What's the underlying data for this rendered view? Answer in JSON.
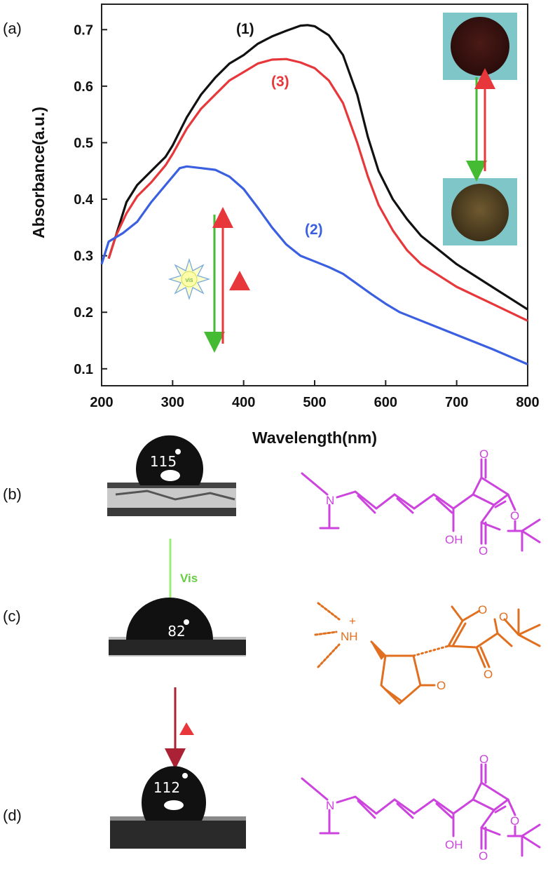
{
  "panels": {
    "a": "(a)",
    "b": "(b)",
    "c": "(c)",
    "d": "(d)"
  },
  "chart_data": {
    "type": "line",
    "xlabel": "Wavelength(nm)",
    "ylabel": "Absorbance(a.u.)",
    "xlim": [
      200,
      800
    ],
    "ylim": [
      0.07,
      0.745
    ],
    "xticks": [
      200,
      300,
      400,
      500,
      600,
      700,
      800
    ],
    "yticks": [
      0.1,
      0.2,
      0.3,
      0.4,
      0.5,
      0.6,
      0.7
    ],
    "grid": false,
    "series": [
      {
        "name": "(1)",
        "color": "#111111",
        "points": [
          [
            210,
            0.295
          ],
          [
            220,
            0.335
          ],
          [
            235,
            0.395
          ],
          [
            250,
            0.425
          ],
          [
            270,
            0.45
          ],
          [
            290,
            0.475
          ],
          [
            300,
            0.495
          ],
          [
            320,
            0.545
          ],
          [
            340,
            0.585
          ],
          [
            360,
            0.615
          ],
          [
            380,
            0.64
          ],
          [
            400,
            0.655
          ],
          [
            420,
            0.675
          ],
          [
            440,
            0.688
          ],
          [
            460,
            0.698
          ],
          [
            480,
            0.707
          ],
          [
            490,
            0.708
          ],
          [
            500,
            0.706
          ],
          [
            520,
            0.69
          ],
          [
            540,
            0.655
          ],
          [
            560,
            0.585
          ],
          [
            575,
            0.51
          ],
          [
            590,
            0.45
          ],
          [
            610,
            0.4
          ],
          [
            630,
            0.365
          ],
          [
            650,
            0.335
          ],
          [
            700,
            0.285
          ],
          [
            750,
            0.245
          ],
          [
            800,
            0.205
          ]
        ]
      },
      {
        "name": "(3)",
        "color": "#e8373a",
        "points": [
          [
            210,
            0.295
          ],
          [
            220,
            0.335
          ],
          [
            235,
            0.375
          ],
          [
            250,
            0.405
          ],
          [
            270,
            0.43
          ],
          [
            290,
            0.46
          ],
          [
            300,
            0.48
          ],
          [
            320,
            0.525
          ],
          [
            340,
            0.56
          ],
          [
            360,
            0.585
          ],
          [
            380,
            0.61
          ],
          [
            400,
            0.625
          ],
          [
            420,
            0.64
          ],
          [
            440,
            0.647
          ],
          [
            460,
            0.648
          ],
          [
            480,
            0.642
          ],
          [
            500,
            0.632
          ],
          [
            520,
            0.61
          ],
          [
            540,
            0.57
          ],
          [
            560,
            0.5
          ],
          [
            575,
            0.44
          ],
          [
            590,
            0.39
          ],
          [
            610,
            0.345
          ],
          [
            630,
            0.31
          ],
          [
            650,
            0.285
          ],
          [
            700,
            0.245
          ],
          [
            750,
            0.215
          ],
          [
            800,
            0.185
          ]
        ]
      },
      {
        "name": "(2)",
        "color": "#3a5fe0",
        "points": [
          [
            200,
            0.285
          ],
          [
            210,
            0.325
          ],
          [
            230,
            0.34
          ],
          [
            250,
            0.36
          ],
          [
            270,
            0.395
          ],
          [
            290,
            0.425
          ],
          [
            310,
            0.455
          ],
          [
            320,
            0.458
          ],
          [
            340,
            0.455
          ],
          [
            360,
            0.452
          ],
          [
            380,
            0.44
          ],
          [
            400,
            0.418
          ],
          [
            420,
            0.385
          ],
          [
            440,
            0.35
          ],
          [
            460,
            0.32
          ],
          [
            480,
            0.3
          ],
          [
            500,
            0.29
          ],
          [
            520,
            0.28
          ],
          [
            540,
            0.268
          ],
          [
            560,
            0.25
          ],
          [
            580,
            0.232
          ],
          [
            600,
            0.215
          ],
          [
            620,
            0.2
          ],
          [
            650,
            0.185
          ],
          [
            700,
            0.16
          ],
          [
            750,
            0.135
          ],
          [
            800,
            0.108
          ]
        ]
      }
    ]
  },
  "legend_labels": {
    "s1": "(1)",
    "s2": "(2)",
    "s3": "(3)"
  },
  "arrow_labels": {
    "sun": "vis",
    "vis": "Vis"
  },
  "contact_angles": {
    "b": "115",
    "c": "82",
    "d": "112"
  },
  "chem_labels": {
    "N": "N",
    "OH": "OH",
    "O": "O",
    "NH": "NH",
    "plus": "+"
  },
  "colors": {
    "open_form": "#cc44dd",
    "closed_form": "#e07020",
    "green": "#44bb33",
    "red": "#e8373a",
    "dark_red": "#aa2233"
  }
}
